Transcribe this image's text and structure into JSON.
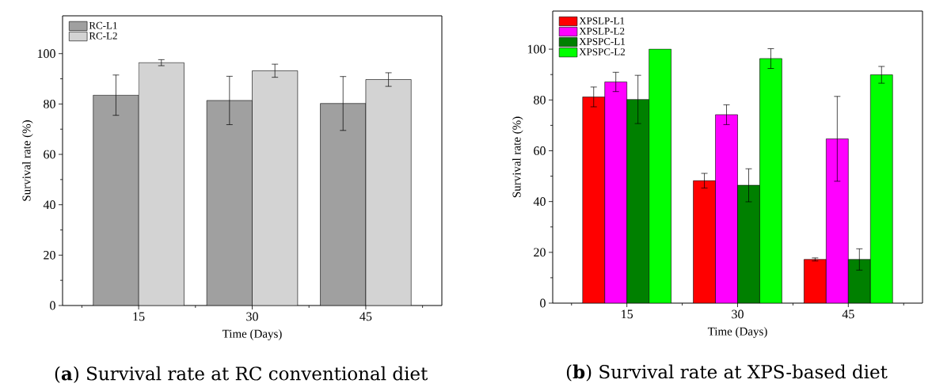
{
  "chart_data": [
    {
      "type": "bar",
      "title": "(**a**) Survival rate at RC conventional diet",
      "xlabel": "Time (Days)",
      "ylabel": "Survival rate (%)",
      "categories": [
        "15",
        "30",
        "45"
      ],
      "ylim": [
        0,
        115
      ],
      "yticks": [
        0,
        20,
        40,
        60,
        80,
        100
      ],
      "legend": "top left",
      "series": [
        {
          "name": "RC-L1",
          "color": "#a0a0a0",
          "values": [
            83.5,
            81.4,
            80.2
          ],
          "errors": [
            8,
            9.6,
            10.7
          ]
        },
        {
          "name": "RC-L2",
          "color": "#d3d3d3",
          "values": [
            96.4,
            93.2,
            89.7
          ],
          "errors": [
            1.2,
            2.6,
            2.7
          ]
        }
      ]
    },
    {
      "type": "bar",
      "title": "(**b**) Survival rate at XPS-based diet",
      "xlabel": "Time (Days)",
      "ylabel": "Survival rate (%)",
      "categories": [
        "15",
        "30",
        "45"
      ],
      "ylim": [
        0,
        115
      ],
      "yticks": [
        0,
        20,
        40,
        60,
        80,
        100
      ],
      "legend": "top left",
      "series": [
        {
          "name": "XPSLP-L1",
          "color": "#ff0000",
          "values": [
            81.2,
            48.2,
            17.2
          ],
          "errors": [
            3.9,
            2.9,
            0.6
          ]
        },
        {
          "name": "XPSLP-L2",
          "color": "#ff00ff",
          "values": [
            87.1,
            74.2,
            64.7
          ],
          "errors": [
            3.8,
            3.9,
            16.7
          ]
        },
        {
          "name": "XPSPC-L1",
          "color": "#008000",
          "values": [
            80.2,
            46.4,
            17.2
          ],
          "errors": [
            9.5,
            6.5,
            4.2
          ]
        },
        {
          "name": "XPSPC-L2",
          "color": "#00ff00",
          "values": [
            100,
            96.3,
            89.9
          ],
          "errors": [
            null,
            3.9,
            3.3
          ]
        }
      ]
    }
  ]
}
